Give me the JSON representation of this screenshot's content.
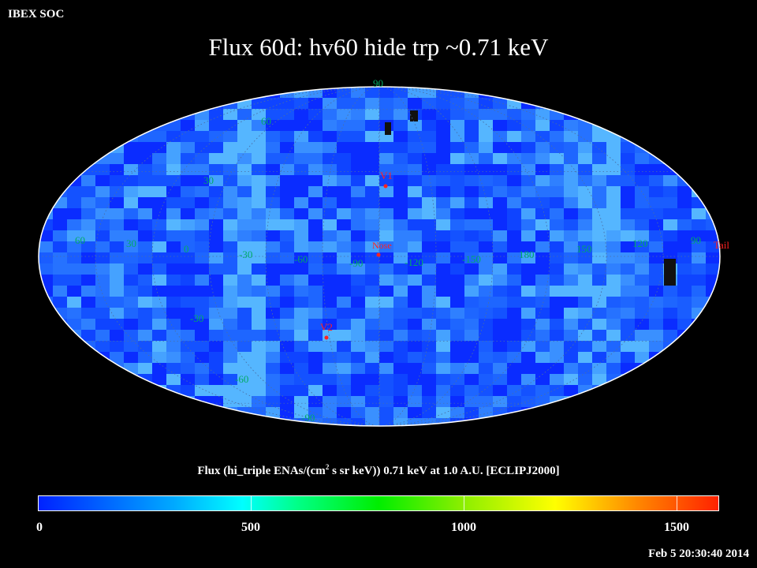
{
  "header": {
    "org": "IBEX SOC",
    "title": "Flux   60d: hv60 hide trp ~0.71 keV"
  },
  "map": {
    "projection": "Mollweide (all-sky, ecliptic)",
    "lon_labels": [
      "60",
      "30",
      "0",
      "-30",
      "-60",
      "-90",
      "-120",
      "-150",
      "180",
      "150",
      "120",
      "90"
    ],
    "lat_labels": [
      "90",
      "60",
      "30",
      "-30",
      "-60",
      "-90"
    ],
    "markers": [
      {
        "name": "V1",
        "color": "#ff2222"
      },
      {
        "name": "Nose",
        "color": "#ff2222"
      },
      {
        "name": "V2",
        "color": "#ff2222"
      },
      {
        "name": "Tail",
        "color": "#ff2222"
      }
    ],
    "grid_label_color": "#00aa66"
  },
  "colorbar": {
    "title_pre": "Flux (hi_triple ENAs/(cm",
    "title_sup": "2",
    "title_post": " s sr keV))  0.71 keV at 1.0 A.U. [ECLIPJ2000]",
    "range": [
      0,
      1600
    ],
    "ticks": [
      "0",
      "500",
      "1000",
      "1500"
    ]
  },
  "footer": {
    "timestamp": "Feb  5 20:30:40 2014"
  }
}
